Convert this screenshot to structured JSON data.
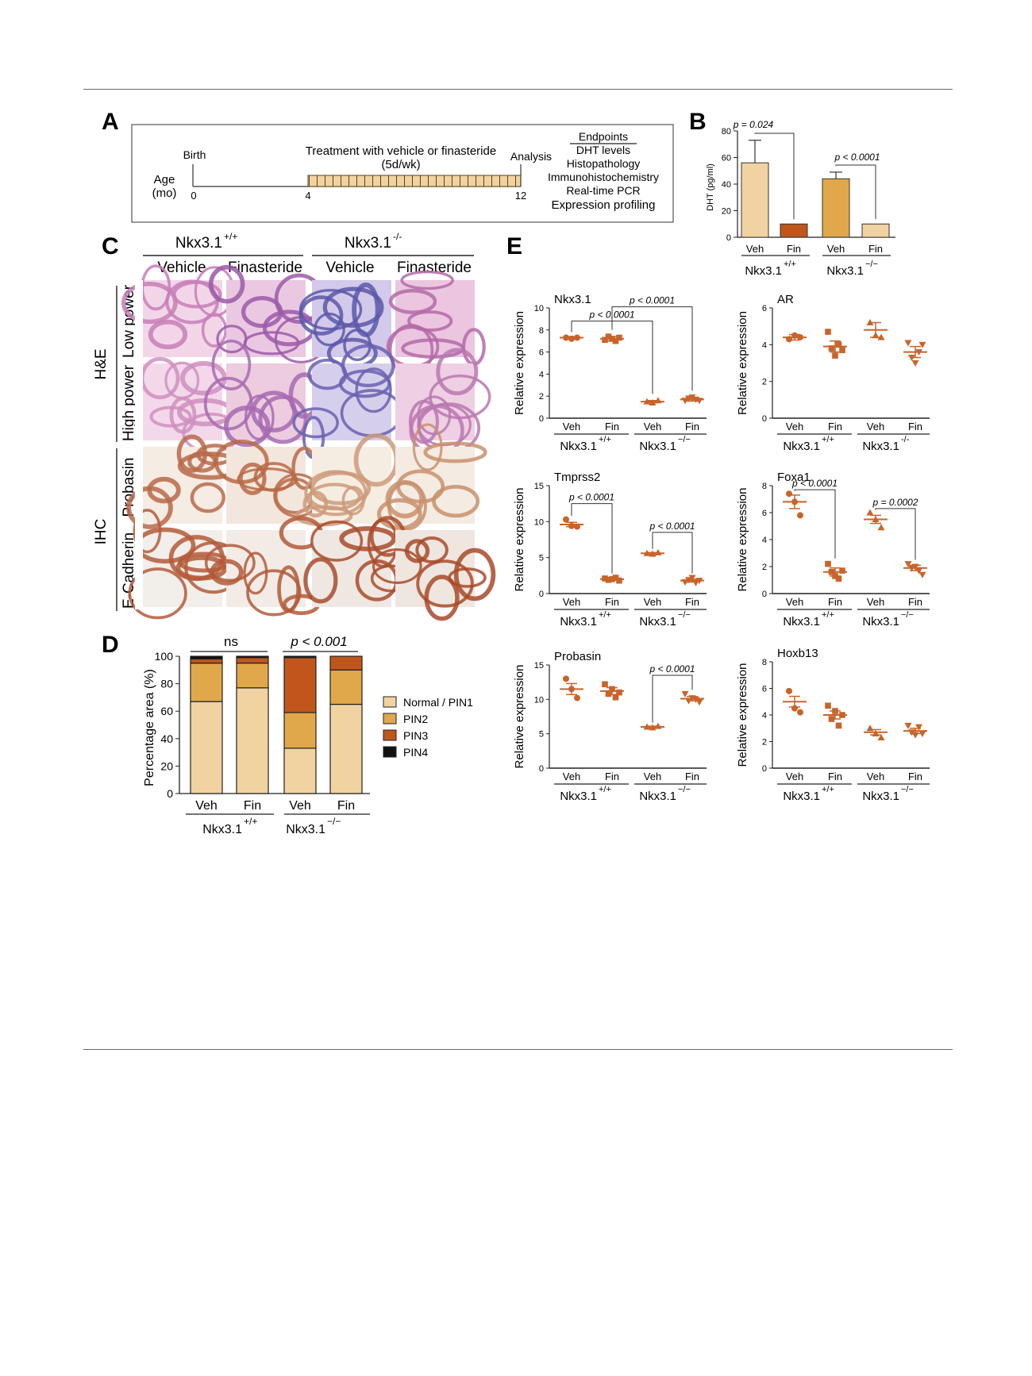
{
  "panelA": {
    "letter": "A",
    "age_label": "Age",
    "age_unit": "(mo)",
    "birth": "Birth",
    "treatment_line1": "Treatment with vehicle or finasteride",
    "treatment_line2": "(5d/wk)",
    "analysis": "Analysis",
    "tick0": "0",
    "tick4": "4",
    "tick12": "12",
    "endpoints_title": "Endpoints",
    "endpoints": [
      "DHT levels",
      "Histopathology",
      "Immunohistochemistry",
      "Real-time PCR",
      "Expression profiling"
    ]
  },
  "panelB": {
    "letter": "B",
    "ylabel": "DHT (pg/ml)",
    "ticks": [
      "0",
      "20",
      "40",
      "60",
      "80"
    ],
    "p1": "p = 0.024",
    "p2": "p < 0.0001",
    "group_wt": "Nkx3.1",
    "group_wt_sup": "+/+",
    "group_ko": "Nkx3.1",
    "group_ko_sup": "−/−",
    "veh": "Veh",
    "fin": "Fin"
  },
  "panelC": {
    "letter": "C",
    "geno_wt": "Nkx3.1",
    "geno_wt_sup": "+/+",
    "geno_ko": "Nkx3.1",
    "geno_ko_sup": "-/-",
    "col_vehicle": "Vehicle",
    "col_finasteride": "Finasteride",
    "row_he": "H&E",
    "row_ihc": "IHC",
    "row_low": "Low power",
    "row_high": "High power",
    "row_probasin": "Probasin",
    "row_ecad": "E-Cadherin"
  },
  "panelD": {
    "letter": "D",
    "ylabel": "Percentage area (%)",
    "ticks": [
      "0",
      "20",
      "40",
      "60",
      "80",
      "100"
    ],
    "ns": "ns",
    "p": "p < 0.001",
    "veh": "Veh",
    "fin": "Fin",
    "group_wt": "Nkx3.1",
    "group_wt_sup": "+/+",
    "group_ko": "Nkx3.1",
    "group_ko_sup": "−/−",
    "legend": [
      "Normal / PIN1",
      "PIN2",
      "PIN3",
      "PIN4"
    ]
  },
  "panelE": {
    "letter": "E",
    "ylabel": "Relative expression",
    "veh": "Veh",
    "fin": "Fin",
    "group_wt": "Nkx3.1",
    "group_wt_sup": "+/+",
    "group_ko": "Nkx3.1",
    "group_ko_sup": "−/−",
    "group_ko_sup_alt": "-/-",
    "titles": [
      "Nkx3.1",
      "AR",
      "Tmprss2",
      "Foxa1",
      "Probasin",
      "Hoxb13"
    ],
    "p_nkx_1": "p < 0.0001",
    "p_nkx_2": "p < 0.0001",
    "p_tmp_1": "p < 0.0001",
    "p_tmp_2": "p < 0.0001",
    "p_fox_1": "p < 0.0001",
    "p_fox_2": "p = 0.0002",
    "p_pro_1": "p < 0.0001"
  },
  "colors": {
    "light": "#f1d3a1",
    "mid": "#e0a84a",
    "dark": "#c0561c",
    "black": "#111111",
    "point": "#c8642a"
  },
  "chart_data": [
    {
      "id": "B",
      "type": "bar",
      "categories": [
        "Veh",
        "Fin",
        "Veh",
        "Fin"
      ],
      "values": [
        56,
        10,
        44,
        10
      ],
      "errors": [
        17,
        0,
        5,
        0
      ],
      "ylim": [
        0,
        80
      ],
      "ylabel": "DHT (pg/ml)"
    },
    {
      "id": "D",
      "type": "bar",
      "stacked": true,
      "categories": [
        "Veh",
        "Fin",
        "Veh",
        "Fin"
      ],
      "series": [
        {
          "name": "Normal / PIN1",
          "values": [
            67,
            77,
            33,
            65
          ]
        },
        {
          "name": "PIN2",
          "values": [
            28,
            18,
            26,
            25
          ]
        },
        {
          "name": "PIN3",
          "values": [
            3,
            4,
            40,
            10
          ]
        },
        {
          "name": "PIN4",
          "values": [
            2,
            1,
            1,
            0
          ]
        }
      ],
      "ylim": [
        0,
        100
      ],
      "ylabel": "Percentage area (%)"
    },
    {
      "id": "E-Nkx3.1",
      "type": "scatter",
      "title": "Nkx3.1",
      "ylim": [
        0,
        10
      ],
      "yticks": [
        0,
        2,
        4,
        6,
        8,
        10
      ],
      "groups": [
        "Veh",
        "Fin",
        "Veh",
        "Fin"
      ],
      "means": [
        7.3,
        7.2,
        1.5,
        1.7
      ],
      "sem": [
        0.1,
        0.2,
        0.1,
        0.15
      ],
      "points": [
        [
          7.3,
          7.2,
          7.3
        ],
        [
          7.1,
          7.4,
          7.2,
          7.0,
          7.3
        ],
        [
          1.5,
          1.4,
          1.6
        ],
        [
          1.6,
          1.8,
          1.9,
          1.7,
          1.6
        ]
      ],
      "markers": [
        "circle",
        "square",
        "triangle",
        "triangle-down"
      ]
    },
    {
      "id": "E-AR",
      "type": "scatter",
      "title": "AR",
      "ylim": [
        0,
        6
      ],
      "yticks": [
        0,
        2,
        4,
        6
      ],
      "groups": [
        "Veh",
        "Fin",
        "Veh",
        "Fin"
      ],
      "means": [
        4.4,
        3.9,
        4.8,
        3.6
      ],
      "sem": [
        0.15,
        0.3,
        0.4,
        0.3
      ],
      "points": [
        [
          4.3,
          4.5,
          4.4
        ],
        [
          4.7,
          3.8,
          3.4,
          4.0,
          3.7
        ],
        [
          5.2,
          4.5,
          4.4
        ],
        [
          4.1,
          3.3,
          3.0,
          3.6,
          4.0
        ]
      ],
      "markers": [
        "circle",
        "square",
        "triangle",
        "triangle-down"
      ]
    },
    {
      "id": "E-Tmprss2",
      "type": "scatter",
      "title": "Tmprss2",
      "ylim": [
        0,
        15
      ],
      "yticks": [
        0,
        5,
        10,
        15
      ],
      "groups": [
        "Veh",
        "Fin",
        "Veh",
        "Fin"
      ],
      "means": [
        9.6,
        2.0,
        5.6,
        1.8
      ],
      "sem": [
        0.3,
        0.1,
        0.1,
        0.2
      ],
      "points": [
        [
          10.3,
          9.4,
          9.3
        ],
        [
          2.1,
          1.9,
          2.0,
          2.2,
          1.8
        ],
        [
          5.6,
          5.5,
          5.7
        ],
        [
          1.6,
          1.9,
          2.2,
          1.5,
          1.8
        ]
      ],
      "markers": [
        "circle",
        "square",
        "triangle",
        "triangle-down"
      ]
    },
    {
      "id": "E-Foxa1",
      "type": "scatter",
      "title": "Foxa1",
      "ylim": [
        0,
        8
      ],
      "yticks": [
        0,
        2,
        4,
        6,
        8
      ],
      "groups": [
        "Veh",
        "Fin",
        "Veh",
        "Fin"
      ],
      "means": [
        6.8,
        1.6,
        5.5,
        1.9
      ],
      "sem": [
        0.5,
        0.3,
        0.3,
        0.2
      ],
      "points": [
        [
          7.4,
          6.8,
          5.8
        ],
        [
          2.2,
          1.6,
          1.3,
          1.1,
          1.7
        ],
        [
          6.0,
          5.5,
          4.9
        ],
        [
          2.2,
          1.9,
          2.0,
          1.7,
          1.4
        ]
      ],
      "markers": [
        "circle",
        "square",
        "triangle",
        "triangle-down"
      ]
    },
    {
      "id": "E-Probasin",
      "type": "scatter",
      "title": "Probasin",
      "ylim": [
        0,
        15
      ],
      "yticks": [
        0,
        5,
        10,
        15
      ],
      "groups": [
        "Veh",
        "Fin",
        "Veh",
        "Fin"
      ],
      "means": [
        11.5,
        11.2,
        6.0,
        10.1
      ],
      "sem": [
        0.8,
        0.5,
        0.1,
        0.3
      ],
      "points": [
        [
          13.0,
          11.5,
          10.2
        ],
        [
          12.2,
          10.8,
          11.5,
          10.3,
          11.0
        ],
        [
          6.0,
          5.9,
          6.1
        ],
        [
          10.8,
          9.8,
          10.2,
          10.0,
          9.6
        ]
      ],
      "markers": [
        "circle",
        "square",
        "triangle",
        "triangle-down"
      ]
    },
    {
      "id": "E-Hoxb13",
      "type": "scatter",
      "title": "Hoxb13",
      "ylim": [
        0,
        8
      ],
      "yticks": [
        0,
        2,
        4,
        6,
        8
      ],
      "groups": [
        "Veh",
        "Fin",
        "Veh",
        "Fin"
      ],
      "means": [
        5.0,
        4.0,
        2.7,
        2.8
      ],
      "sem": [
        0.4,
        0.3,
        0.2,
        0.2
      ],
      "points": [
        [
          5.8,
          4.5,
          4.2
        ],
        [
          4.7,
          3.7,
          4.3,
          3.2,
          4.0
        ],
        [
          3.0,
          2.6,
          2.3
        ],
        [
          3.2,
          2.7,
          2.5,
          3.1,
          2.6
        ]
      ],
      "markers": [
        "circle",
        "square",
        "triangle",
        "triangle-down"
      ]
    }
  ]
}
